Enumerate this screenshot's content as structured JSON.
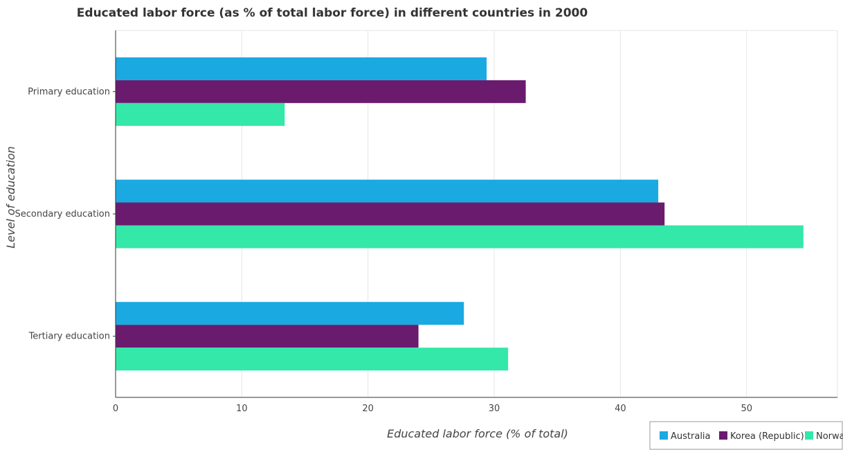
{
  "chart_data": {
    "type": "bar",
    "orientation": "horizontal",
    "title": "Educated labor force (as % of total labor force) in different countries in 2000",
    "xlabel": "Educated labor force (% of total)",
    "ylabel": "Level of education",
    "categories": [
      "Primary education",
      "Secondary education",
      "Tertiary education"
    ],
    "series": [
      {
        "name": "Australia",
        "color": "#1ba9e1",
        "values": [
          29.4,
          43.0,
          27.6
        ]
      },
      {
        "name": "Korea (Republic)",
        "color": "#6a1b6e",
        "values": [
          32.5,
          43.5,
          24.0
        ]
      },
      {
        "name": "Norway",
        "color": "#33e8a8",
        "values": [
          13.4,
          54.5,
          31.1
        ]
      }
    ],
    "xlim": [
      0,
      57.2
    ],
    "xticks": [
      0,
      10,
      20,
      30,
      40,
      50
    ],
    "grid": true,
    "legend_position": "bottom-right"
  }
}
